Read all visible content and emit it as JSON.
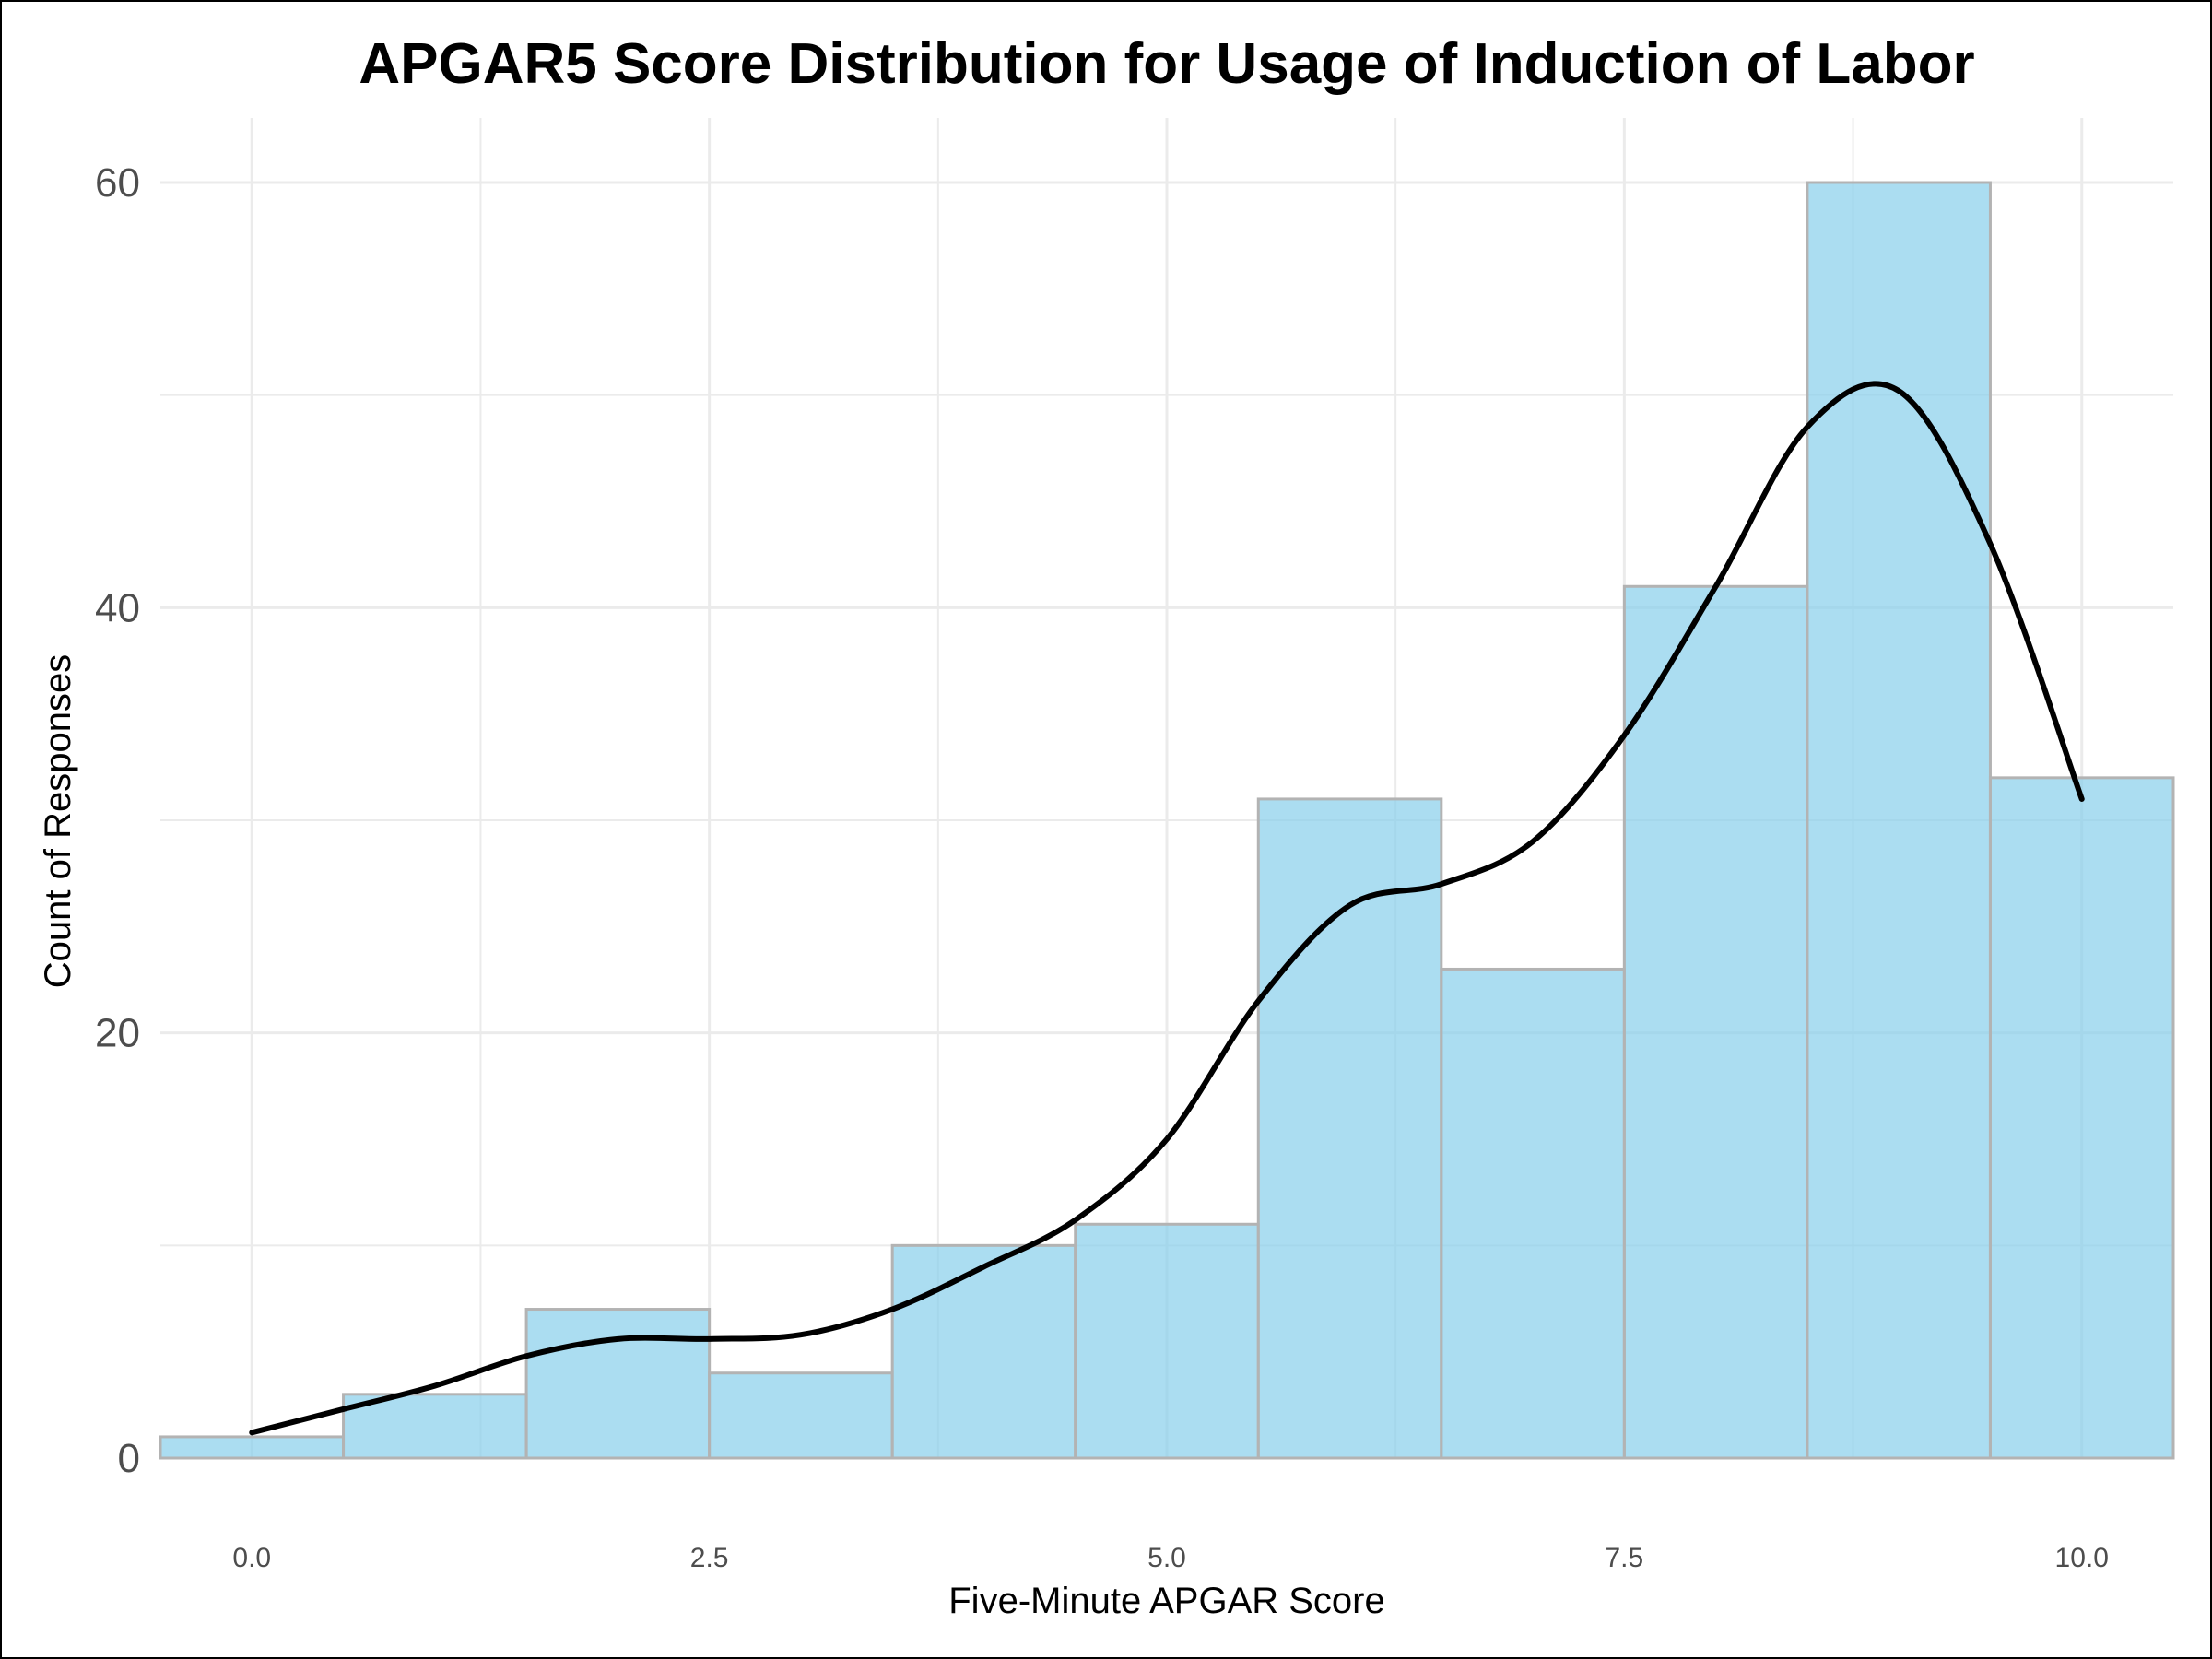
{
  "chart_data": {
    "type": "bar",
    "title": "APGAR5 Score Distribution for Usage of Induction of Labor",
    "xlabel": "Five-Minute APGAR Score",
    "ylabel": "Count of Responses",
    "bins": [
      0,
      1,
      2,
      3,
      4,
      5,
      6,
      7,
      8,
      9,
      10
    ],
    "bin_width": 1,
    "values": [
      1,
      3,
      7,
      4,
      10,
      11,
      31,
      23,
      41,
      60,
      32
    ],
    "xlim": [
      -0.5,
      10.5
    ],
    "ylim": [
      0,
      60
    ],
    "x_ticks": [
      "0.0",
      "2.5",
      "5.0",
      "7.5",
      "10.0"
    ],
    "y_ticks": [
      "0",
      "20",
      "40",
      "60"
    ],
    "grid": true,
    "density_curve": {
      "x": [
        0,
        0.5,
        1,
        1.5,
        2,
        2.5,
        3,
        3.5,
        4,
        4.5,
        5,
        5.5,
        6,
        6.5,
        7,
        7.5,
        8,
        8.5,
        9,
        9.5,
        10
      ],
      "y": [
        1.2,
        2.3,
        3.4,
        4.8,
        5.6,
        5.6,
        5.8,
        7.0,
        9.0,
        11.2,
        15.0,
        21.5,
        26.0,
        27.0,
        29.0,
        34.0,
        41.0,
        48.5,
        50.2,
        43.0,
        31.0
      ]
    },
    "colors": {
      "bar_fill": "#87CEEB",
      "bar_stroke": "#b3b3b3",
      "curve": "#000000",
      "grid": "#ebebeb"
    }
  }
}
